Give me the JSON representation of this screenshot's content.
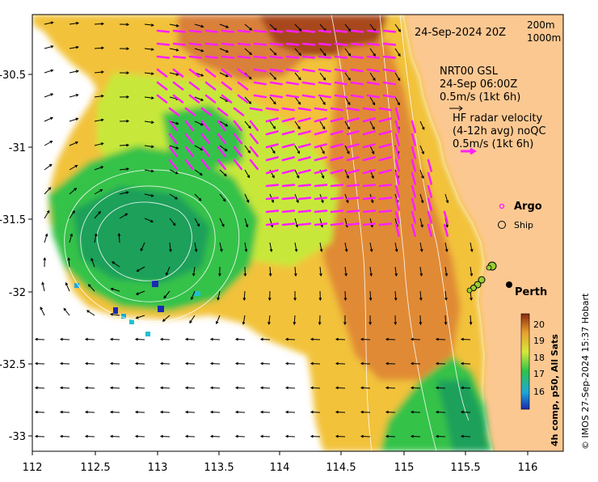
{
  "map": {
    "datetime": "24-Sep-2024 20Z",
    "isobaths": [
      "200m",
      "1000m"
    ],
    "model_label": [
      "NRT00 GSL",
      "24-Sep 06:00Z",
      "0.5m/s (1kt 6h)"
    ],
    "radar_label": [
      "HF radar velocity",
      "(4-12h avg) noQC",
      "0.5m/s (1kt 6h)"
    ],
    "legend": {
      "argo": "Argo",
      "ship": "Ship"
    },
    "city": "Perth",
    "colorbar": {
      "label": "4h comp, p50, All Sats",
      "ticks": [
        "20",
        "19",
        "18",
        "17",
        "16"
      ]
    },
    "credit": "© IMOS 27-Sep-2024 15:37 Hobart",
    "x_ticks": [
      "112",
      "112.5",
      "113",
      "113.5",
      "114",
      "114.5",
      "115",
      "115.5",
      "116"
    ],
    "y_ticks": [
      "-30.5",
      "-31",
      "-31.5",
      "-32",
      "-32.5",
      "-33"
    ],
    "colors": {
      "land": "#fcc892",
      "warm": "#d9803a",
      "hot": "#a8461c",
      "mid": "#f2c23a",
      "lime": "#c7e83a",
      "green": "#35c24a",
      "cool": "#1aa05a",
      "cyan": "#20c0d0",
      "radar_arrow": "#ff20ff"
    }
  }
}
